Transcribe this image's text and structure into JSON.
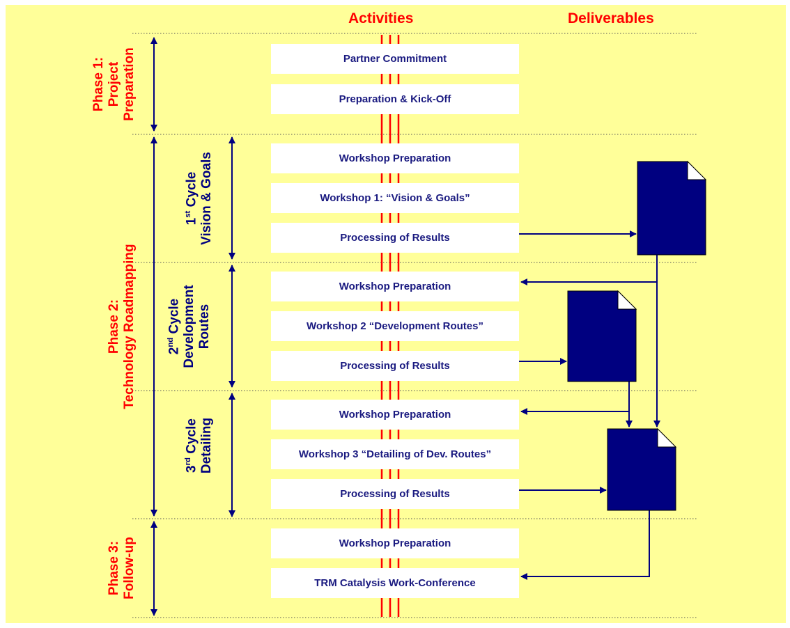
{
  "headers": {
    "activities": "Activities",
    "deliverables": "Deliverables"
  },
  "phases": [
    {
      "line1": "Phase 1:",
      "line2": "Project",
      "line3": "Preparation"
    },
    {
      "line1": "Phase 2:",
      "line2": "Technology Roadmapping"
    },
    {
      "line1": "Phase 3:",
      "line2": "Follow-up"
    }
  ],
  "cycles": [
    {
      "num": "1",
      "sup": "st",
      "word": " Cycle",
      "line2": "Vision & Goals"
    },
    {
      "num": "2",
      "sup": "nd",
      "word": " Cycle",
      "line2": "Development",
      "line3": "Routes"
    },
    {
      "num": "3",
      "sup": "rd",
      "word": " Cycle",
      "line2": "Detailing"
    }
  ],
  "activities": [
    "Partner Commitment",
    "Preparation & Kick-Off",
    "Workshop Preparation",
    "Workshop 1: “Vision & Goals”",
    "Processing of Results",
    "Workshop Preparation",
    "Workshop 2 “Development Routes”",
    "Processing of Results",
    "Workshop Preparation",
    "Workshop 3 “Detailing of Dev. Routes”",
    "Processing of Results",
    "Workshop Preparation",
    "TRM Catalysis Work-Conference"
  ],
  "colors": {
    "background": "#ffff99",
    "accent": "#ff0000",
    "navy": "#000080",
    "box_text": "#1a1a80"
  },
  "icons": [
    "document-icon",
    "arrow-icon"
  ]
}
